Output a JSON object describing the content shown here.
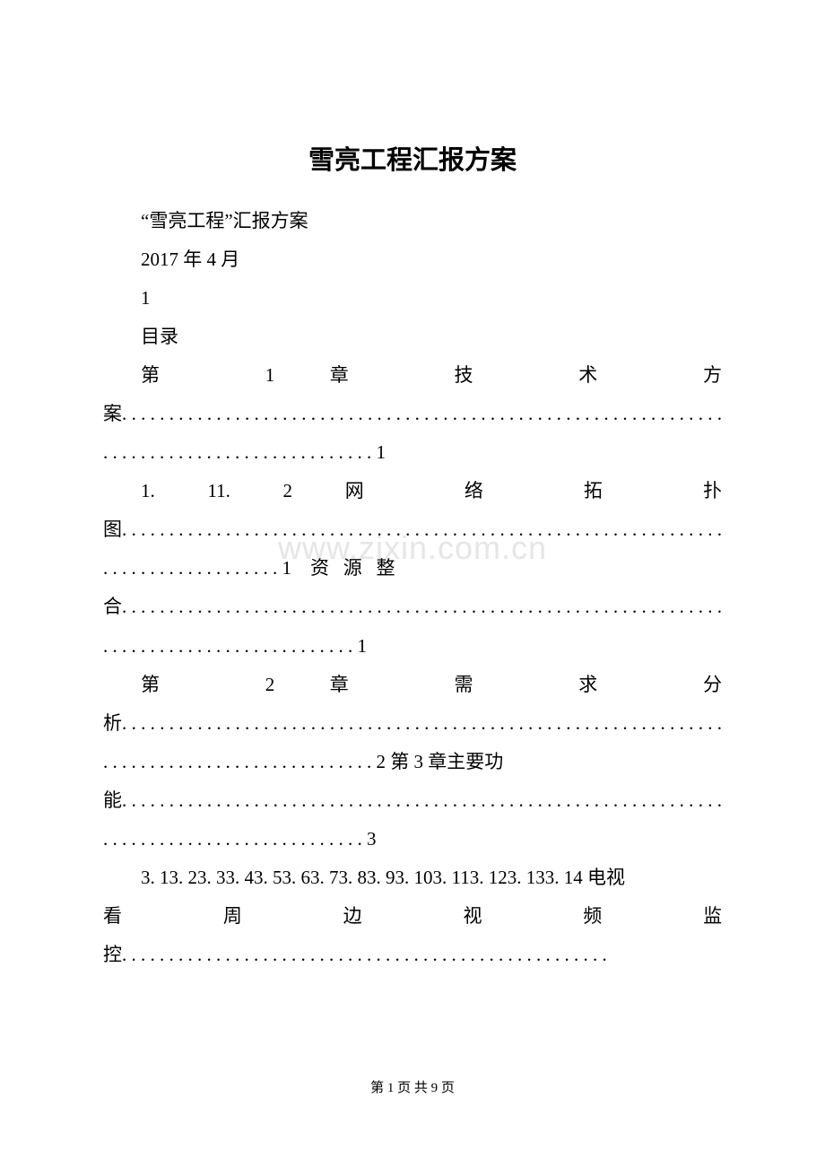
{
  "title": "雪亮工程汇报方案",
  "subtitle": "“雪亮工程”汇报方案",
  "date": "2017 年 4 月",
  "page_num_inline": "1",
  "toc_label": "目录",
  "watermark": "www.zixin.com.cn",
  "footer": "第 1 页 共 9 页",
  "toc": {
    "ch1_chars": [
      "第",
      "1",
      "章",
      "技",
      "术",
      "方"
    ],
    "ch1_tail": "案",
    "ch1_page": "1",
    "sec112_chars": [
      "1. 11. 2",
      "网",
      "络",
      "拓",
      "扑"
    ],
    "sec112_tail": "图",
    "sec112_page": "1",
    "res_chars": [
      "资",
      "源",
      "整"
    ],
    "res_tail": "合",
    "res_page": "1",
    "ch2_chars": [
      "第",
      "2",
      "章",
      "需",
      "求",
      "分"
    ],
    "ch2_tail": "析",
    "ch2_page": "2",
    "ch3_inline": "第 3 章主要功",
    "ch3_tail": "能",
    "ch3_page": "3",
    "sec3_nums": "3. 13. 23. 33. 43. 53. 63. 73. 83. 93. 103. 113. 123. 133. 14 电视",
    "sec3_chars": [
      "看",
      "周",
      "边",
      "视",
      "频",
      "监"
    ],
    "sec3_tail": "控"
  },
  "colors": {
    "text": "#000000",
    "background": "#ffffff",
    "watermark": "#e6e6e6"
  },
  "fonts": {
    "title_size": 29,
    "body_size": 21,
    "footer_size": 15,
    "watermark_size": 36
  }
}
